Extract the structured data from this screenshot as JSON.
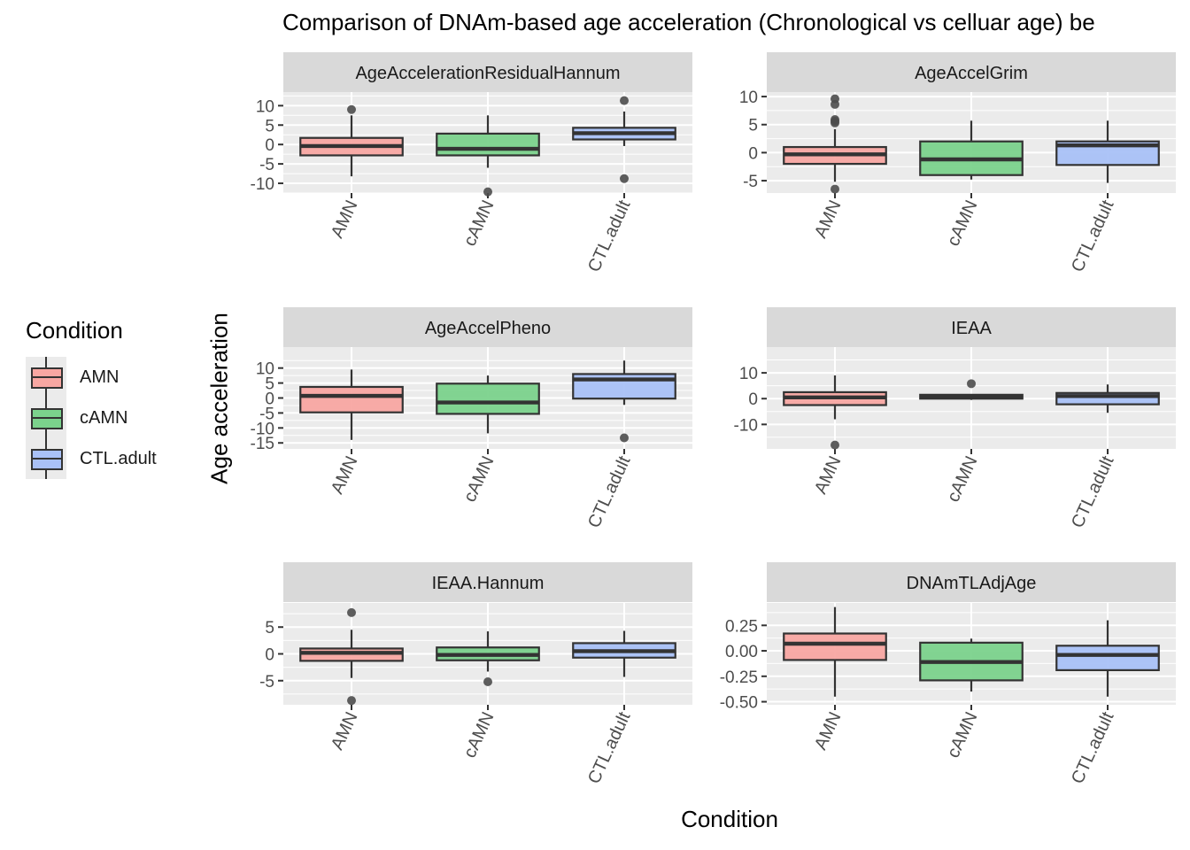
{
  "title": "Comparison of DNAm-based age acceleration (Chronological vs celluar age) be",
  "x_axis_title": "Condition",
  "y_axis_title": "Age acceleration",
  "legend": {
    "title": "Condition",
    "items": [
      {
        "label": "AMN",
        "color": "#f8a7a2"
      },
      {
        "label": "cAMN",
        "color": "#7bd28c"
      },
      {
        "label": "CTL.adult",
        "color": "#a9c1f7"
      }
    ]
  },
  "colors": {
    "panel_bg": "#ebebeb",
    "strip_bg": "#d9d9d9",
    "grid": "#ffffff",
    "box_outline": "#333333",
    "outlier": "#4d4d4d"
  },
  "chart_data": [
    {
      "type": "boxplot",
      "facet": "AgeAccelerationResidualHannum",
      "categories": [
        "AMN",
        "cAMN",
        "CTL.adult"
      ],
      "ylim": [
        -12.5,
        13.5
      ],
      "yticks": [
        -10,
        -5,
        0,
        5,
        10
      ],
      "ytick_labels": [
        "-10",
        "-5",
        "0",
        "5",
        "10"
      ],
      "boxes": [
        {
          "q1": -2.8,
          "median": -0.4,
          "q3": 1.7,
          "lower": -8.2,
          "upper": 7.5,
          "outliers": [
            9.0
          ]
        },
        {
          "q1": -2.8,
          "median": -1.1,
          "q3": 2.8,
          "lower": -6.0,
          "upper": 7.5,
          "outliers": [
            -12.2
          ]
        },
        {
          "q1": 1.3,
          "median": 2.9,
          "q3": 4.3,
          "lower": -0.4,
          "upper": 8.5,
          "outliers": [
            11.3,
            -8.8
          ]
        }
      ]
    },
    {
      "type": "boxplot",
      "facet": "AgeAccelGrim",
      "categories": [
        "AMN",
        "cAMN",
        "CTL.adult"
      ],
      "ylim": [
        -7.2,
        10.8
      ],
      "yticks": [
        -5,
        0,
        5,
        10
      ],
      "ytick_labels": [
        "-5",
        "0",
        "5",
        "10"
      ],
      "boxes": [
        {
          "q1": -2.0,
          "median": -0.3,
          "q3": 1.0,
          "lower": -5.2,
          "upper": 4.2,
          "outliers": [
            9.6,
            8.6,
            5.9,
            5.6,
            5.3,
            -6.5
          ]
        },
        {
          "q1": -4.0,
          "median": -1.2,
          "q3": 2.0,
          "lower": -4.8,
          "upper": 5.7,
          "outliers": []
        },
        {
          "q1": -2.2,
          "median": 1.3,
          "q3": 2.0,
          "lower": -5.4,
          "upper": 5.7,
          "outliers": []
        }
      ]
    },
    {
      "type": "boxplot",
      "facet": "AgeAccelPheno",
      "categories": [
        "AMN",
        "cAMN",
        "CTL.adult"
      ],
      "ylim": [
        -17,
        17
      ],
      "yticks": [
        -15,
        -10,
        -5,
        0,
        5,
        10
      ],
      "ytick_labels": [
        "-15",
        "-10",
        "-5",
        "0",
        "5",
        "10"
      ],
      "boxes": [
        {
          "q1": -4.8,
          "median": 0.7,
          "q3": 3.7,
          "lower": -14.0,
          "upper": 9.5,
          "outliers": []
        },
        {
          "q1": -5.3,
          "median": -1.5,
          "q3": 4.8,
          "lower": -11.8,
          "upper": 7.5,
          "outliers": []
        },
        {
          "q1": -0.2,
          "median": 6.2,
          "q3": 8.0,
          "lower": -2.3,
          "upper": 12.5,
          "outliers": [
            -13.3
          ]
        }
      ]
    },
    {
      "type": "boxplot",
      "facet": "IEAA",
      "categories": [
        "AMN",
        "cAMN",
        "CTL.adult"
      ],
      "ylim": [
        -19.5,
        20
      ],
      "yticks": [
        -10,
        0,
        10
      ],
      "ytick_labels": [
        "-10",
        "0",
        "10"
      ],
      "boxes": [
        {
          "q1": -2.5,
          "median": 0.5,
          "q3": 2.5,
          "lower": -8.0,
          "upper": 9.0,
          "outliers": [
            -18.0
          ]
        },
        {
          "q1": 0.0,
          "median": 0.7,
          "q3": 1.5,
          "lower": -0.5,
          "upper": 1.5,
          "outliers": [
            5.8
          ]
        },
        {
          "q1": -2.2,
          "median": 1.0,
          "q3": 2.2,
          "lower": -5.5,
          "upper": 5.5,
          "outliers": []
        }
      ]
    },
    {
      "type": "boxplot",
      "facet": "IEAA.Hannum",
      "categories": [
        "AMN",
        "cAMN",
        "CTL.adult"
      ],
      "ylim": [
        -9.5,
        9.5
      ],
      "yticks": [
        -5,
        0,
        5
      ],
      "ytick_labels": [
        "-5",
        "0",
        "5"
      ],
      "boxes": [
        {
          "q1": -1.3,
          "median": 0.2,
          "q3": 1.0,
          "lower": -4.5,
          "upper": 4.5,
          "outliers": [
            7.7,
            -8.7
          ]
        },
        {
          "q1": -1.2,
          "median": -0.2,
          "q3": 1.2,
          "lower": -3.3,
          "upper": 4.2,
          "outliers": [
            -5.2
          ]
        },
        {
          "q1": -0.7,
          "median": 0.5,
          "q3": 2.0,
          "lower": -4.3,
          "upper": 4.3,
          "outliers": []
        }
      ]
    },
    {
      "type": "boxplot",
      "facet": "DNAmTLAdjAge",
      "categories": [
        "AMN",
        "cAMN",
        "CTL.adult"
      ],
      "ylim": [
        -0.53,
        0.47
      ],
      "yticks": [
        -0.5,
        -0.25,
        0.0,
        0.25
      ],
      "ytick_labels": [
        "-0.50",
        "-0.25",
        "0.00",
        "0.25"
      ],
      "boxes": [
        {
          "q1": -0.09,
          "median": 0.07,
          "q3": 0.17,
          "lower": -0.45,
          "upper": 0.43,
          "outliers": []
        },
        {
          "q1": -0.29,
          "median": -0.11,
          "q3": 0.08,
          "lower": -0.4,
          "upper": 0.12,
          "outliers": []
        },
        {
          "q1": -0.19,
          "median": -0.04,
          "q3": 0.05,
          "lower": -0.45,
          "upper": 0.3,
          "outliers": []
        }
      ]
    }
  ]
}
